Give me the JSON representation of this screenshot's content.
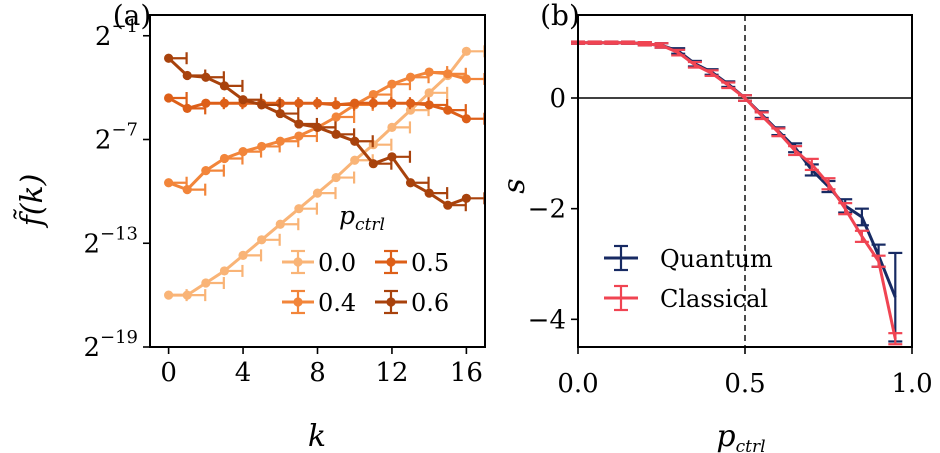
{
  "chart_data": [
    {
      "panel": "(a)",
      "type": "line",
      "xlabel": "k",
      "ylabel": "f̃(k)",
      "yscale": "log2",
      "xlim": [
        -1,
        17
      ],
      "ylim_exp": [
        -19,
        0.2
      ],
      "xticks": [
        0,
        4,
        8,
        12,
        16
      ],
      "xtick_labels": [
        "0",
        "4",
        "8",
        "12",
        "16"
      ],
      "yticks_exp": [
        -1,
        -7,
        -13,
        -19
      ],
      "ytick_labels": [
        {
          "base": "2",
          "exp": "−1"
        },
        {
          "base": "2",
          "exp": "−7"
        },
        {
          "base": "2",
          "exp": "−13"
        },
        {
          "base": "2",
          "exp": "−19"
        }
      ],
      "legend_title": {
        "main": "p",
        "sub": "ctrl"
      },
      "x": [
        0,
        1,
        2,
        3,
        4,
        5,
        6,
        7,
        8,
        9,
        10,
        11,
        12,
        13,
        14,
        15,
        16
      ],
      "series": [
        {
          "name": "0.0",
          "color": "#f9b477",
          "y_exp": [
            -16.0,
            -16.0,
            -15.3,
            -14.6,
            -13.7,
            -12.8,
            -11.9,
            -11.0,
            -10.1,
            -9.2,
            -8.2,
            -7.3,
            -6.3,
            -5.3,
            -4.3,
            -3.3,
            -1.9
          ]
        },
        {
          "name": "0.4",
          "color": "#f2853a",
          "y_exp": [
            -9.5,
            -9.9,
            -8.8,
            -8.1,
            -7.7,
            -7.4,
            -7.1,
            -6.8,
            -6.3,
            -5.7,
            -5.0,
            -4.4,
            -3.8,
            -3.4,
            -3.1,
            -3.2,
            -3.5
          ]
        },
        {
          "name": "0.5",
          "color": "#dd5f18",
          "y_exp": [
            -4.6,
            -5.2,
            -4.9,
            -4.9,
            -4.9,
            -4.9,
            -4.9,
            -4.9,
            -4.9,
            -5.0,
            -4.9,
            -4.9,
            -4.9,
            -4.9,
            -5.0,
            -5.3,
            -5.8
          ]
        },
        {
          "name": "0.6",
          "color": "#a8420c",
          "y_exp": [
            -2.3,
            -3.3,
            -3.4,
            -3.9,
            -4.7,
            -5.0,
            -5.5,
            -6.1,
            -6.3,
            -6.7,
            -7.1,
            -8.4,
            -8.0,
            -9.5,
            -10.1,
            -10.8,
            -10.4
          ]
        }
      ]
    },
    {
      "panel": "(b)",
      "type": "line",
      "xlabel": {
        "main": "p",
        "sub": "ctrl"
      },
      "ylabel": "s",
      "xlim": [
        0.0,
        1.0
      ],
      "ylim": [
        -4.5,
        1.5
      ],
      "xticks": [
        0.0,
        0.5,
        1.0
      ],
      "xtick_labels": [
        "0.0",
        "0.5",
        "1.0"
      ],
      "yticks": [
        0,
        -2,
        -4
      ],
      "ytick_labels": [
        "0",
        "−2",
        "−4"
      ],
      "vline_x": 0.5,
      "hline_y": 0,
      "legend": [
        "Quantum",
        "Classical"
      ],
      "series": [
        {
          "name": "Quantum",
          "color": "#172a63",
          "x": [
            0.0,
            0.05,
            0.1,
            0.15,
            0.2,
            0.25,
            0.3,
            0.35,
            0.4,
            0.45,
            0.5,
            0.55,
            0.6,
            0.65,
            0.7,
            0.75,
            0.8,
            0.85,
            0.9,
            0.95
          ],
          "y": [
            1.0,
            1.0,
            1.0,
            1.0,
            0.98,
            0.95,
            0.85,
            0.62,
            0.47,
            0.25,
            0.0,
            -0.3,
            -0.6,
            -0.9,
            -1.3,
            -1.6,
            -1.95,
            -2.15,
            -2.85,
            -3.6
          ],
          "err": [
            0.02,
            0.02,
            0.02,
            0.02,
            0.03,
            0.04,
            0.05,
            0.05,
            0.05,
            0.05,
            0.05,
            0.06,
            0.07,
            0.08,
            0.1,
            0.1,
            0.12,
            0.15,
            0.2,
            0.8
          ]
        },
        {
          "name": "Classical",
          "color": "#f04452",
          "x": [
            0.0,
            0.05,
            0.1,
            0.15,
            0.2,
            0.25,
            0.3,
            0.35,
            0.4,
            0.45,
            0.5,
            0.55,
            0.6,
            0.65,
            0.7,
            0.75,
            0.8,
            0.85,
            0.9,
            0.95
          ],
          "y": [
            1.0,
            1.0,
            1.0,
            1.0,
            0.98,
            0.95,
            0.82,
            0.6,
            0.45,
            0.23,
            0.0,
            -0.32,
            -0.62,
            -0.95,
            -1.2,
            -1.55,
            -2.0,
            -2.5,
            -2.95,
            -4.35
          ],
          "err": [
            0.02,
            0.02,
            0.02,
            0.02,
            0.03,
            0.04,
            0.05,
            0.05,
            0.05,
            0.05,
            0.05,
            0.06,
            0.07,
            0.08,
            0.1,
            0.1,
            0.1,
            0.1,
            0.1,
            0.1
          ]
        }
      ]
    }
  ]
}
